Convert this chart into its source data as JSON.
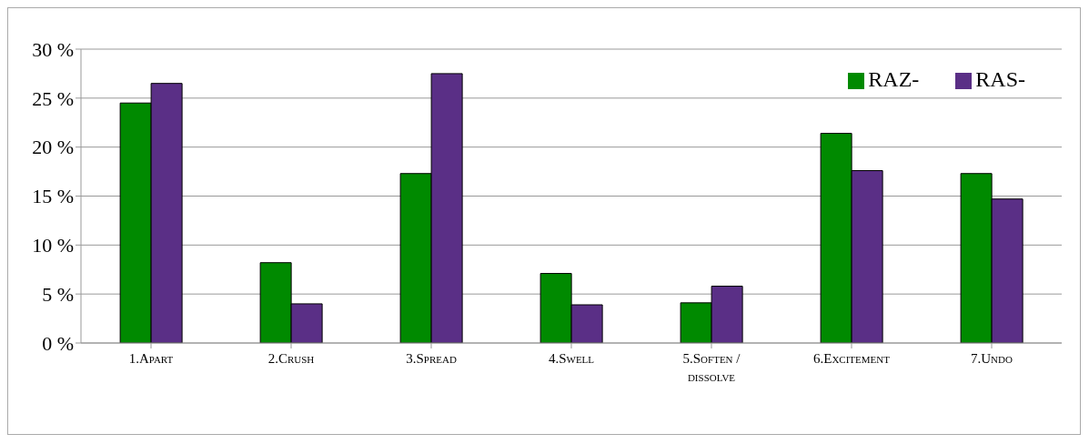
{
  "chart_data": {
    "type": "bar",
    "categories": [
      "1.Apart",
      "2.Crush",
      "3.Spread",
      "4.Swell",
      "5.Soften / dissolve",
      "6.Excitement",
      "7.Undo"
    ],
    "series": [
      {
        "name": "RAZ-",
        "color": "#008a00",
        "values": [
          24.5,
          8.2,
          17.3,
          7.1,
          4.1,
          21.4,
          17.3
        ]
      },
      {
        "name": "RAS-",
        "color": "#5a2f86",
        "values": [
          26.5,
          4.0,
          27.5,
          3.9,
          5.8,
          17.6,
          14.7
        ]
      }
    ],
    "ylim": [
      0,
      30
    ],
    "yticks": [
      {
        "value": 0,
        "label": "0 %"
      },
      {
        "value": 5,
        "label": "5 %"
      },
      {
        "value": 10,
        "label": "10 %"
      },
      {
        "value": 15,
        "label": "15 %"
      },
      {
        "value": 20,
        "label": "20 %"
      },
      {
        "value": 25,
        "label": "25 %"
      },
      {
        "value": 30,
        "label": "30 %"
      }
    ],
    "grid": "y",
    "legend": "top right"
  }
}
